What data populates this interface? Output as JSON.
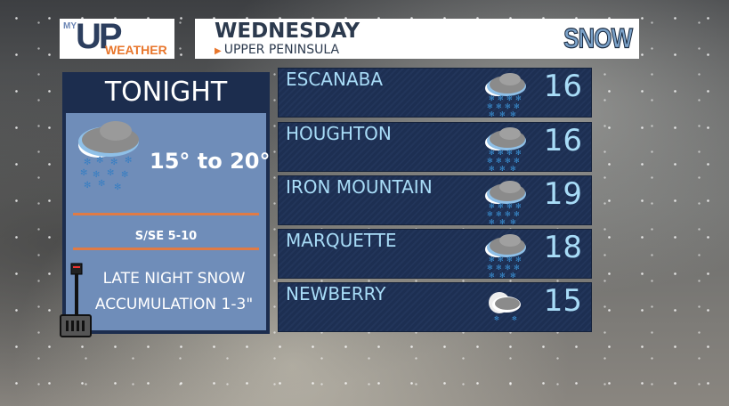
{
  "branding": {
    "logo_my": "MY",
    "logo_up": "UP",
    "logo_weather": "WEATHER"
  },
  "header": {
    "day": "WEDNESDAY",
    "region": "UPPER PENINSULA",
    "badge": "SNOW",
    "accent": "#e8762c"
  },
  "tonight": {
    "title": "TONIGHT",
    "icon": "snow-cloud-icon",
    "temp_range": "15° to 20°",
    "wind": "S/SE  5-10",
    "note_line1": "LATE NIGHT SNOW",
    "note_line2": "ACCUMULATION 1-3\""
  },
  "cities": [
    {
      "name": "ESCANABA",
      "value": "16",
      "icon": "snow-cloud-icon"
    },
    {
      "name": "HOUGHTON",
      "value": "16",
      "icon": "snow-cloud-icon"
    },
    {
      "name": "IRON MOUNTAIN",
      "value": "19",
      "icon": "snow-cloud-icon"
    },
    {
      "name": "MARQUETTE",
      "value": "18",
      "icon": "snow-cloud-icon"
    },
    {
      "name": "NEWBERRY",
      "value": "15",
      "icon": "light-snow-cloud-icon"
    }
  ]
}
